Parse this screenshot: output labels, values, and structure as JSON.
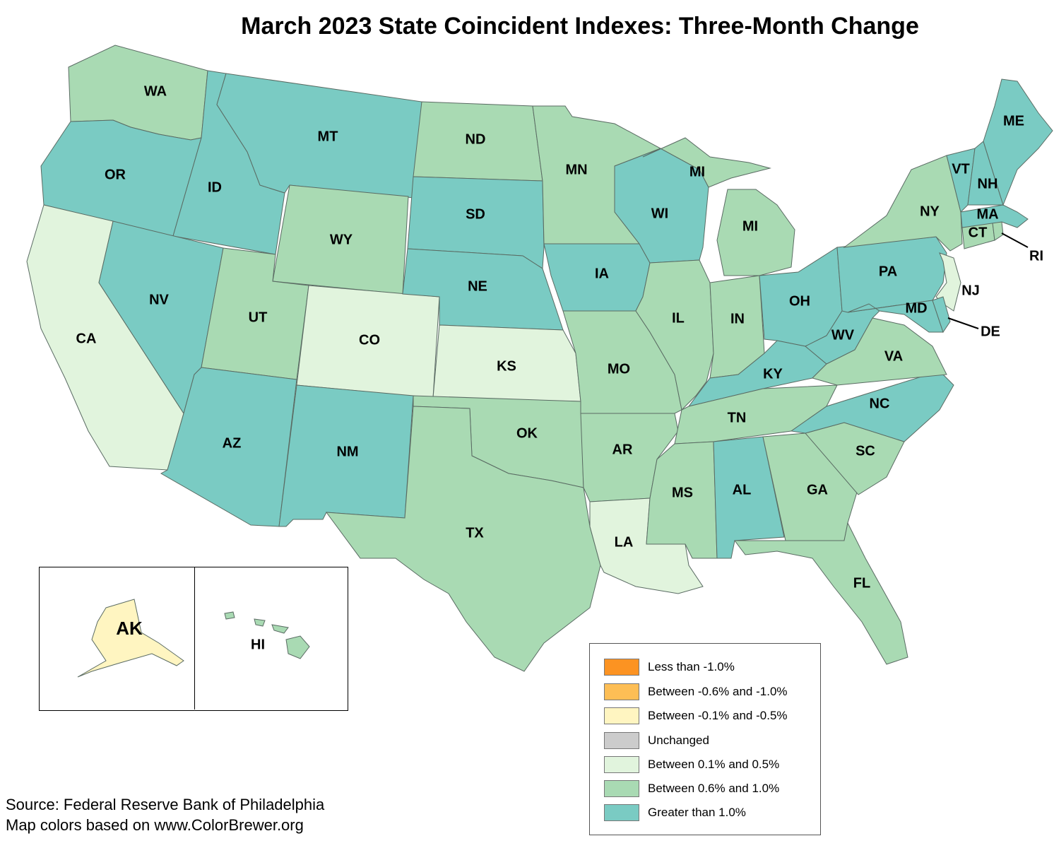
{
  "title": "March 2023 State Coincident Indexes: Three-Month Change",
  "colors": {
    "lt_neg1": "#fc9322",
    "neg06_neg1": "#fdbe55",
    "neg01_neg05": "#fff5c1",
    "unchanged": "#cccccc",
    "p01_p05": "#e1f4dd",
    "p06_p10": "#a9dab3",
    "gt_p10": "#7acbc3"
  },
  "legend": {
    "items": [
      {
        "label": "Less than -1.0%",
        "color": "#fc9322"
      },
      {
        "label": "Between -0.6% and -1.0%",
        "color": "#fdbe55"
      },
      {
        "label": "Between -0.1% and -0.5%",
        "color": "#fff5c1"
      },
      {
        "label": "Unchanged",
        "color": "#cccccc"
      },
      {
        "label": "Between 0.1% and 0.5%",
        "color": "#e1f4dd"
      },
      {
        "label": "Between 0.6% and 1.0%",
        "color": "#a9dab3"
      },
      {
        "label": "Greater than 1.0%",
        "color": "#7acbc3"
      }
    ]
  },
  "states": {
    "WA": "Between 0.6% and 1.0%",
    "OR": "Greater than 1.0%",
    "CA": "Between 0.1% and 0.5%",
    "ID": "Greater than 1.0%",
    "NV": "Greater than 1.0%",
    "MT": "Greater than 1.0%",
    "WY": "Between 0.6% and 1.0%",
    "UT": "Between 0.6% and 1.0%",
    "AZ": "Greater than 1.0%",
    "CO": "Between 0.1% and 0.5%",
    "NM": "Greater than 1.0%",
    "ND": "Between 0.6% and 1.0%",
    "SD": "Greater than 1.0%",
    "NE": "Greater than 1.0%",
    "KS": "Between 0.1% and 0.5%",
    "OK": "Between 0.6% and 1.0%",
    "TX": "Between 0.6% and 1.0%",
    "MN": "Between 0.6% and 1.0%",
    "IA": "Greater than 1.0%",
    "MO": "Between 0.6% and 1.0%",
    "AR": "Between 0.6% and 1.0%",
    "LA": "Between 0.1% and 0.5%",
    "WI": "Greater than 1.0%",
    "IL": "Between 0.6% and 1.0%",
    "MI": "Between 0.6% and 1.0%",
    "IN": "Between 0.6% and 1.0%",
    "OH": "Greater than 1.0%",
    "KY": "Greater than 1.0%",
    "TN": "Between 0.6% and 1.0%",
    "MS": "Between 0.6% and 1.0%",
    "AL": "Greater than 1.0%",
    "GA": "Between 0.6% and 1.0%",
    "FL": "Between 0.6% and 1.0%",
    "SC": "Between 0.6% and 1.0%",
    "NC": "Greater than 1.0%",
    "VA": "Between 0.6% and 1.0%",
    "WV": "Greater than 1.0%",
    "PA": "Greater than 1.0%",
    "NY": "Between 0.6% and 1.0%",
    "NJ": "Between 0.1% and 0.5%",
    "DE": "Greater than 1.0%",
    "MD": "Greater than 1.0%",
    "CT": "Between 0.6% and 1.0%",
    "RI": "Between 0.6% and 1.0%",
    "MA": "Greater than 1.0%",
    "VT": "Greater than 1.0%",
    "NH": "Greater than 1.0%",
    "ME": "Greater than 1.0%",
    "AK": "Between -0.1% and -0.5%",
    "HI": "Between 0.6% and 1.0%"
  },
  "labels": {
    "WA": "WA",
    "OR": "OR",
    "CA": "CA",
    "ID": "ID",
    "NV": "NV",
    "MT": "MT",
    "WY": "WY",
    "UT": "UT",
    "AZ": "AZ",
    "CO": "CO",
    "NM": "NM",
    "ND": "ND",
    "SD": "SD",
    "NE": "NE",
    "KS": "KS",
    "OK": "OK",
    "TX": "TX",
    "MN": "MN",
    "IA": "IA",
    "MO": "MO",
    "AR": "AR",
    "LA": "LA",
    "WI": "WI",
    "IL": "IL",
    "MI_UP": "MI",
    "MI": "MI",
    "IN": "IN",
    "OH": "OH",
    "KY": "KY",
    "TN": "TN",
    "MS": "MS",
    "AL": "AL",
    "GA": "GA",
    "FL": "FL",
    "SC": "SC",
    "NC": "NC",
    "VA": "VA",
    "WV": "WV",
    "PA": "PA",
    "NY": "NY",
    "NJ": "NJ",
    "DE": "DE",
    "MD": "MD",
    "CT": "CT",
    "RI": "RI",
    "MA": "MA",
    "VT": "VT",
    "NH": "NH",
    "ME": "ME",
    "AK": "AK",
    "HI": "HI"
  },
  "source": {
    "line1": "Source: Federal Reserve Bank of Philadelphia",
    "line2": "Map colors based on www.ColorBrewer.org"
  }
}
